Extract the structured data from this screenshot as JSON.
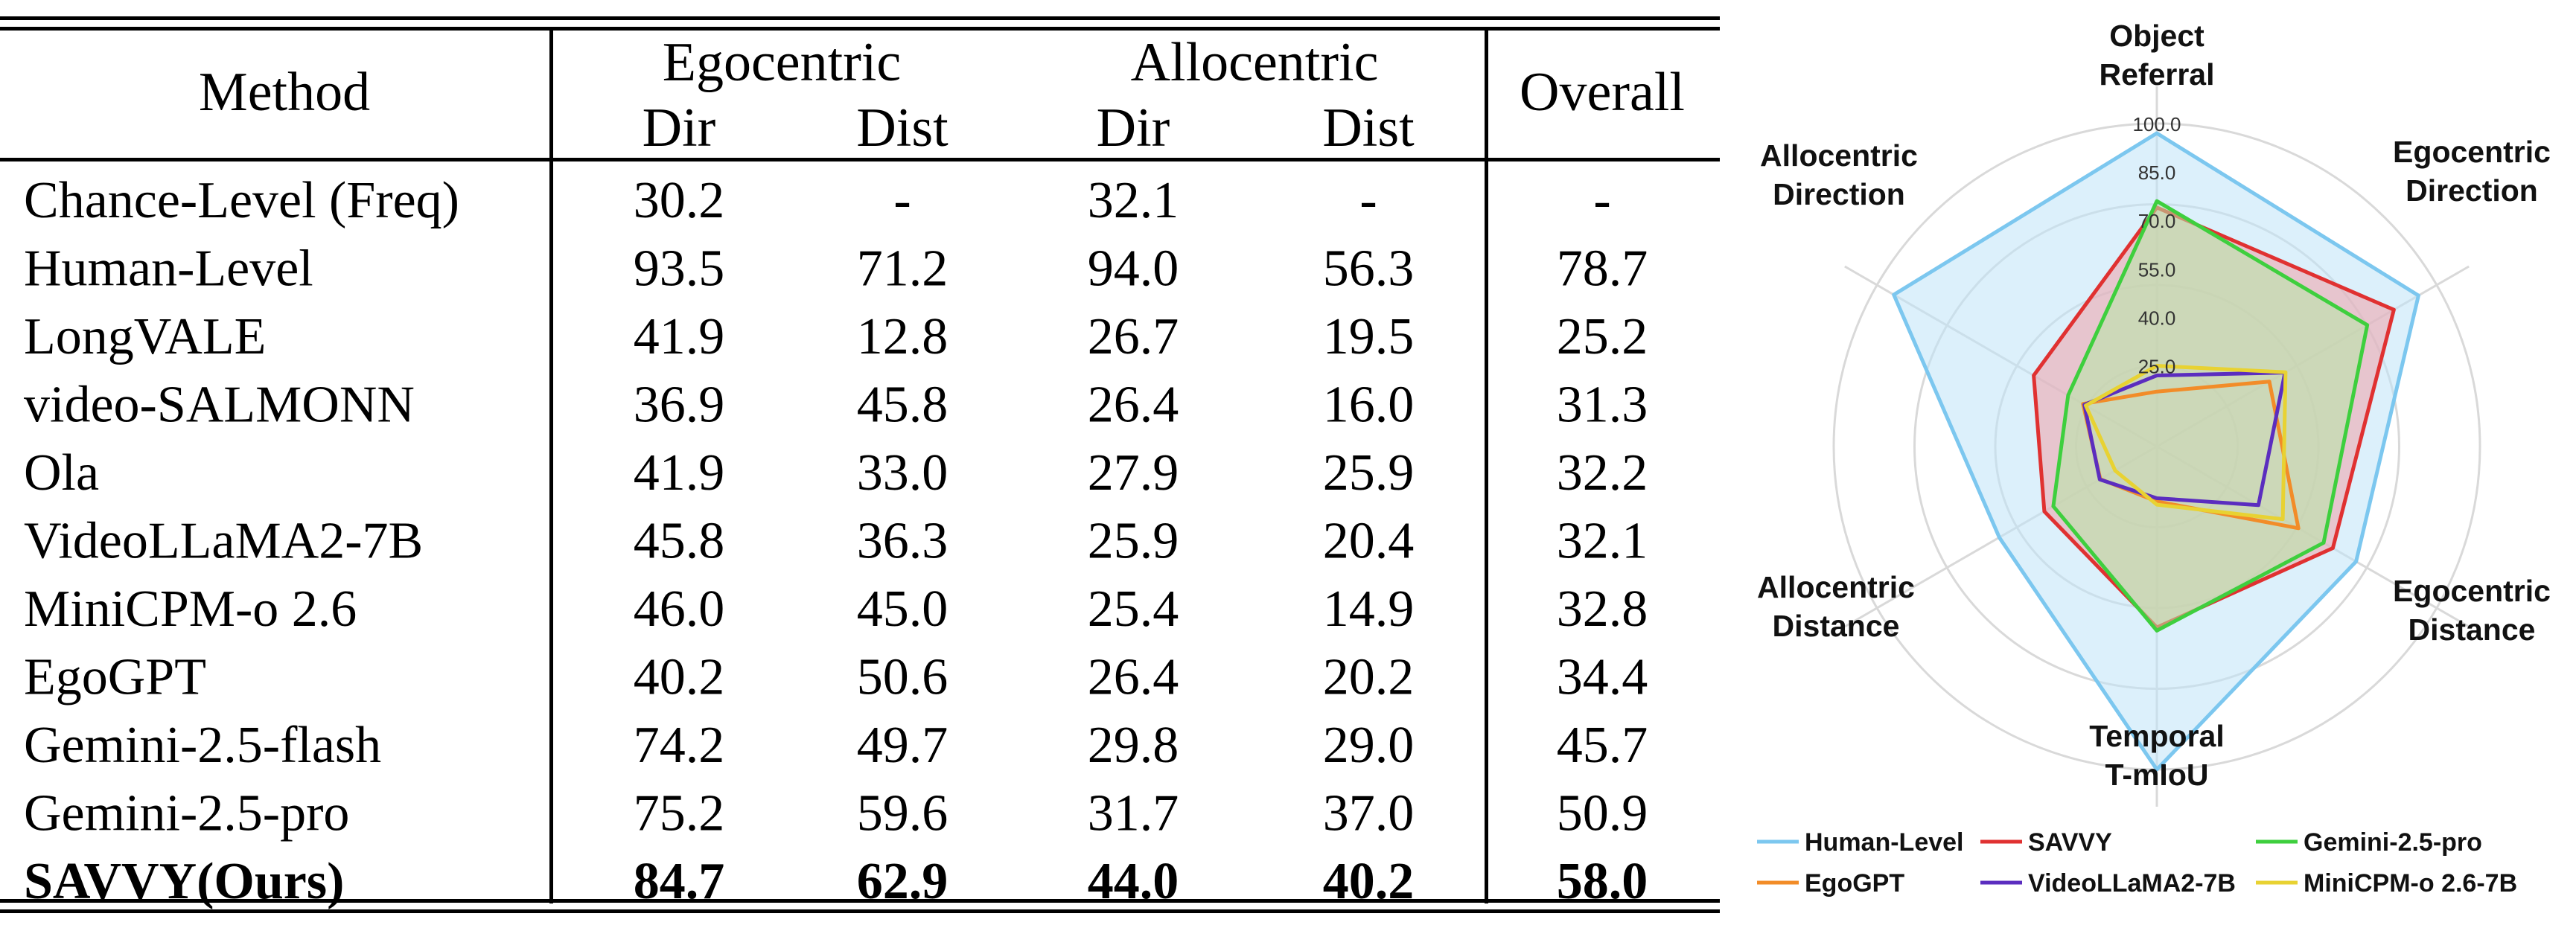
{
  "table": {
    "col_groups": {
      "method": "Method",
      "ego": "Egocentric",
      "allo": "Allocentric",
      "overall": "Overall"
    },
    "sub_headers": [
      "Dir",
      "Dist",
      "Dir",
      "Dist"
    ],
    "rows": [
      {
        "method": "Chance-Level (Freq)",
        "values": [
          "30.2",
          "-",
          "32.1",
          "-",
          "-"
        ]
      },
      {
        "method": "Human-Level",
        "values": [
          "93.5",
          "71.2",
          "94.0",
          "56.3",
          "78.7"
        ]
      },
      {
        "method": "LongVALE",
        "values": [
          "41.9",
          "12.8",
          "26.7",
          "19.5",
          "25.2"
        ]
      },
      {
        "method": "video-SALMONN",
        "values": [
          "36.9",
          "45.8",
          "26.4",
          "16.0",
          "31.3"
        ]
      },
      {
        "method": "Ola",
        "values": [
          "41.9",
          "33.0",
          "27.9",
          "25.9",
          "32.2"
        ]
      },
      {
        "method": "VideoLLaMA2-7B",
        "values": [
          "45.8",
          "36.3",
          "25.9",
          "20.4",
          "32.1"
        ]
      },
      {
        "method": "MiniCPM-o 2.6",
        "values": [
          "46.0",
          "45.0",
          "25.4",
          "14.9",
          "32.8"
        ]
      },
      {
        "method": "EgoGPT",
        "values": [
          "40.2",
          "50.6",
          "26.4",
          "20.2",
          "34.4"
        ]
      },
      {
        "method": "Gemini-2.5-flash",
        "values": [
          "74.2",
          "49.7",
          "29.8",
          "29.0",
          "45.7"
        ]
      },
      {
        "method": "Gemini-2.5-pro",
        "values": [
          "75.2",
          "59.6",
          "31.7",
          "37.0",
          "50.9"
        ]
      },
      {
        "method": "SAVVY(Ours)",
        "values": [
          "84.7",
          "62.9",
          "44.0",
          "40.2",
          "58.0"
        ],
        "bold": true
      }
    ]
  },
  "chart_data": {
    "type": "radar",
    "axes": [
      "Object Referral",
      "Egocentric Direction",
      "Egocentric Distance",
      "Temporal T-mIoU",
      "Allocentric Distance",
      "Allocentric Direction"
    ],
    "axis_label_lines": [
      [
        "Object",
        "Referral"
      ],
      [
        "Egocentric",
        "Direction"
      ],
      [
        "Egocentric",
        "Distance"
      ],
      [
        "Temporal",
        "T-mIoU"
      ],
      [
        "Allocentric",
        "Distance"
      ],
      [
        "Allocentric",
        "Direction"
      ]
    ],
    "tick_labels": [
      "25.0",
      "40.0",
      "55.0",
      "70.0",
      "85.0",
      "100.0"
    ],
    "tick_values": [
      25,
      40,
      55,
      70,
      85,
      100
    ],
    "range": [
      0,
      100
    ],
    "series": [
      {
        "name": "Human-Level",
        "color": "#7cc7ef",
        "fill": "#bfe3f8",
        "values": [
          97,
          93.5,
          71.2,
          100,
          56.3,
          94
        ]
      },
      {
        "name": "SAVVY",
        "color": "#e03131",
        "fill": "#f0a3aa",
        "values": [
          74,
          84.7,
          62.9,
          56,
          40.2,
          44
        ]
      },
      {
        "name": "Gemini-2.5-pro",
        "color": "#3ecf3e",
        "fill": "#b7e8a5",
        "values": [
          76,
          75.2,
          59.6,
          57,
          37,
          31.7
        ]
      },
      {
        "name": "EgoGPT",
        "color": "#f28c28",
        "fill": "none",
        "values": [
          17,
          40.2,
          50.6,
          17,
          20.2,
          26.4
        ]
      },
      {
        "name": "VideoLLaMA2-7B",
        "color": "#5b2dbf",
        "fill": "none",
        "values": [
          22,
          45.8,
          36.3,
          16,
          20.4,
          25.9
        ]
      },
      {
        "name": "MiniCPM-o 2.6-7B",
        "color": "#e8d232",
        "fill": "none",
        "values": [
          25,
          46,
          45,
          18,
          14.9,
          25.4
        ]
      }
    ],
    "grid": true,
    "legend_position": "bottom"
  }
}
